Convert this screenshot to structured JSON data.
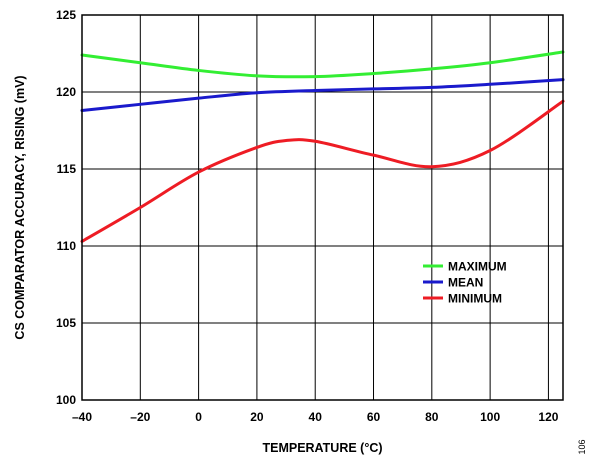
{
  "chart_data": {
    "type": "line",
    "title": "",
    "xlabel": "TEMPERATURE (°C)",
    "ylabel": "CS COMPARATOR ACCURACY, RISING (mV)",
    "xlim": [
      -40,
      125
    ],
    "ylim": [
      100,
      125
    ],
    "x_ticks": [
      -40,
      -20,
      0,
      20,
      40,
      60,
      80,
      100,
      120
    ],
    "x_tick_labels": [
      "–40",
      "–20",
      "0",
      "20",
      "40",
      "60",
      "80",
      "100",
      "120"
    ],
    "y_ticks": [
      100,
      105,
      110,
      115,
      120,
      125
    ],
    "y_tick_labels": [
      "100",
      "105",
      "110",
      "115",
      "120",
      "125"
    ],
    "grid": true,
    "legend_position": "center-right",
    "series": [
      {
        "name": "MAXIMUM",
        "color": "#33ee33",
        "x": [
          -40,
          -20,
          0,
          20,
          40,
          60,
          80,
          100,
          125
        ],
        "y": [
          122.4,
          121.9,
          121.4,
          121.05,
          121.0,
          121.2,
          121.5,
          121.9,
          122.6
        ]
      },
      {
        "name": "MEAN",
        "color": "#1a1acc",
        "x": [
          -40,
          -20,
          0,
          20,
          40,
          60,
          80,
          100,
          125
        ],
        "y": [
          118.8,
          119.2,
          119.6,
          119.95,
          120.1,
          120.2,
          120.3,
          120.5,
          120.8
        ]
      },
      {
        "name": "MINIMUM",
        "color": "#ee1c24",
        "x": [
          -40,
          -20,
          0,
          20,
          30,
          40,
          60,
          80,
          100,
          125
        ],
        "y": [
          110.3,
          112.5,
          114.8,
          116.4,
          116.85,
          116.8,
          115.9,
          115.15,
          116.2,
          119.4
        ]
      }
    ]
  },
  "figure_code": "106"
}
